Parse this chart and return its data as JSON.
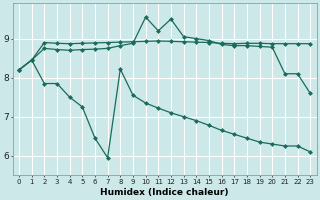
{
  "xlabel": "Humidex (Indice chaleur)",
  "bg_color": "#cce8e8",
  "grid_color": "#ffffff",
  "line_color": "#1a6b5a",
  "xlim": [
    -0.5,
    23.5
  ],
  "ylim": [
    5.5,
    9.9
  ],
  "yticks": [
    6,
    7,
    8,
    9
  ],
  "xtick_labels": [
    "0",
    "1",
    "2",
    "3",
    "4",
    "5",
    "6",
    "7",
    "8",
    "9",
    "10",
    "11",
    "12",
    "13",
    "14",
    "15",
    "16",
    "17",
    "18",
    "19",
    "20",
    "21",
    "22",
    "23"
  ],
  "series1_x": [
    0,
    1,
    2,
    3,
    4,
    5,
    6,
    7,
    8,
    9,
    10,
    11,
    12,
    13,
    14,
    15,
    16,
    17,
    18,
    19,
    20,
    21,
    22,
    23
  ],
  "series1_y": [
    8.2,
    8.45,
    8.9,
    8.88,
    8.87,
    8.88,
    8.89,
    8.9,
    8.91,
    8.92,
    8.93,
    8.94,
    8.93,
    8.92,
    8.91,
    8.9,
    8.88,
    8.87,
    8.88,
    8.88,
    8.87,
    8.87,
    8.87,
    8.87
  ],
  "series2_x": [
    0,
    1,
    2,
    3,
    4,
    5,
    6,
    7,
    8,
    9,
    10,
    11,
    12,
    13,
    14,
    15,
    16,
    17,
    18,
    19,
    20,
    21,
    22,
    23
  ],
  "series2_y": [
    8.2,
    8.45,
    8.75,
    8.72,
    8.7,
    8.72,
    8.73,
    8.75,
    8.82,
    8.88,
    9.55,
    9.2,
    9.5,
    9.05,
    9.0,
    8.95,
    8.85,
    8.82,
    8.82,
    8.8,
    8.78,
    8.1,
    8.1,
    7.6
  ],
  "series3_x": [
    0,
    1,
    2,
    3,
    4,
    5,
    6,
    7,
    8,
    9,
    10,
    11,
    12,
    13,
    14,
    15,
    16,
    17,
    18,
    19,
    20,
    21,
    22,
    23
  ],
  "series3_y": [
    8.2,
    8.45,
    7.85,
    7.85,
    7.5,
    7.25,
    6.45,
    5.95,
    8.22,
    7.55,
    7.35,
    7.22,
    7.1,
    7.0,
    6.9,
    6.78,
    6.65,
    6.55,
    6.45,
    6.35,
    6.3,
    6.25,
    6.25,
    6.1
  ]
}
